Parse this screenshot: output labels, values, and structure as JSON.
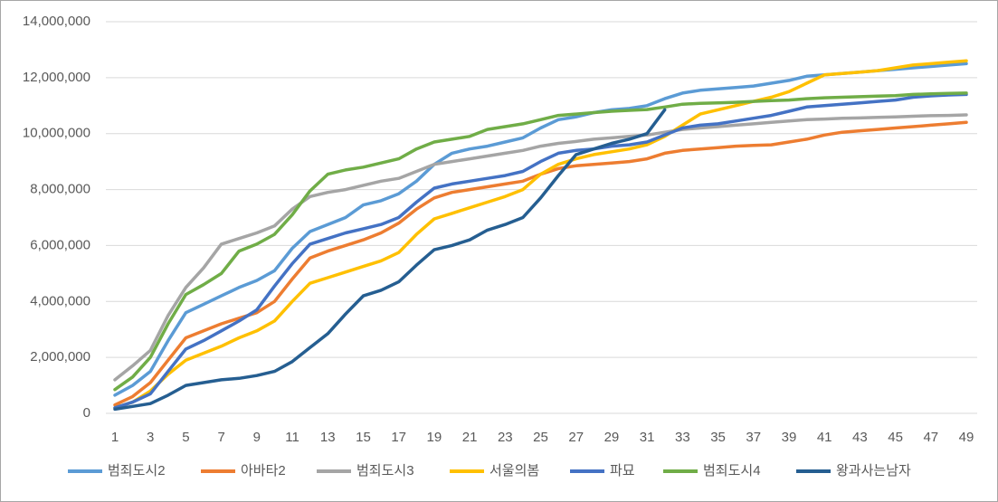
{
  "chart_data": {
    "type": "line",
    "x": [
      1,
      2,
      3,
      4,
      5,
      6,
      7,
      8,
      9,
      10,
      11,
      12,
      13,
      14,
      15,
      16,
      17,
      18,
      19,
      20,
      21,
      22,
      23,
      24,
      25,
      26,
      27,
      28,
      29,
      30,
      31,
      32,
      33,
      34,
      35,
      36,
      37,
      38,
      39,
      40,
      41,
      42,
      43,
      44,
      45,
      46,
      47,
      48,
      49
    ],
    "xlim": [
      1,
      49
    ],
    "xticks": [
      1,
      3,
      5,
      7,
      9,
      11,
      13,
      15,
      17,
      19,
      21,
      23,
      25,
      27,
      29,
      31,
      33,
      35,
      37,
      39,
      41,
      43,
      45,
      47,
      49
    ],
    "ylim": [
      0,
      14000000
    ],
    "yticks": [
      0,
      {
        "value": 2000000,
        "label": "2,000,000"
      },
      {
        "value": 4000000,
        "label": "4,000,000"
      },
      {
        "value": 6000000,
        "label": "6,000,000"
      },
      {
        "value": 8000000,
        "label": "8,000,000"
      },
      {
        "value": 10000000,
        "label": "10,000,000"
      },
      {
        "value": 12000000,
        "label": "12,000,000"
      },
      {
        "value": 14000000,
        "label": "14,000,000"
      }
    ],
    "grid": true,
    "legend": "bottom",
    "series": [
      {
        "name": "범죄도시2",
        "color": "#5b9bd5",
        "values": [
          650000,
          1000000,
          1500000,
          2600000,
          3600000,
          3900000,
          4200000,
          4500000,
          4750000,
          5100000,
          5900000,
          6500000,
          6750000,
          7000000,
          7450000,
          7600000,
          7850000,
          8300000,
          8900000,
          9300000,
          9450000,
          9550000,
          9700000,
          9850000,
          10200000,
          10500000,
          10600000,
          10750000,
          10850000,
          10900000,
          11000000,
          11250000,
          11450000,
          11550000,
          11600000,
          11650000,
          11700000,
          11800000,
          11900000,
          12050000,
          12100000,
          12150000,
          12200000,
          12250000,
          12300000,
          12350000,
          12400000,
          12450000,
          12500000
        ]
      },
      {
        "name": "아바타2",
        "color": "#ed7d31",
        "values": [
          300000,
          600000,
          1100000,
          1900000,
          2700000,
          2950000,
          3200000,
          3400000,
          3600000,
          4000000,
          4800000,
          5550000,
          5800000,
          6000000,
          6200000,
          6450000,
          6800000,
          7300000,
          7700000,
          7900000,
          8000000,
          8100000,
          8200000,
          8300000,
          8550000,
          8750000,
          8850000,
          8900000,
          8950000,
          9000000,
          9100000,
          9300000,
          9400000,
          9450000,
          9500000,
          9550000,
          9580000,
          9600000,
          9700000,
          9800000,
          9950000,
          10050000,
          10100000,
          10150000,
          10200000,
          10250000,
          10300000,
          10350000,
          10400000
        ]
      },
      {
        "name": "범죄도시3",
        "color": "#a5a5a5",
        "values": [
          1200000,
          1700000,
          2250000,
          3500000,
          4500000,
          5200000,
          6050000,
          6250000,
          6450000,
          6700000,
          7300000,
          7750000,
          7900000,
          8000000,
          8150000,
          8300000,
          8400000,
          8650000,
          8900000,
          9000000,
          9100000,
          9200000,
          9300000,
          9400000,
          9550000,
          9650000,
          9720000,
          9800000,
          9850000,
          9900000,
          9950000,
          10050000,
          10150000,
          10200000,
          10250000,
          10300000,
          10350000,
          10400000,
          10450000,
          10500000,
          10520000,
          10550000,
          10560000,
          10580000,
          10600000,
          10620000,
          10640000,
          10650000,
          10670000
        ]
      },
      {
        "name": "서울의봄",
        "color": "#ffc000",
        "values": [
          200000,
          400000,
          800000,
          1400000,
          1900000,
          2150000,
          2400000,
          2700000,
          2950000,
          3300000,
          4000000,
          4650000,
          4850000,
          5050000,
          5250000,
          5450000,
          5750000,
          6400000,
          6950000,
          7150000,
          7350000,
          7550000,
          7750000,
          8000000,
          8550000,
          8900000,
          9100000,
          9250000,
          9350000,
          9450000,
          9600000,
          9900000,
          10300000,
          10700000,
          10850000,
          11000000,
          11150000,
          11300000,
          11500000,
          11800000,
          12100000,
          12150000,
          12200000,
          12250000,
          12350000,
          12450000,
          12500000,
          12550000,
          12600000
        ]
      },
      {
        "name": "파묘",
        "color": "#4472c4",
        "values": [
          200000,
          400000,
          700000,
          1500000,
          2300000,
          2600000,
          2950000,
          3300000,
          3700000,
          4550000,
          5350000,
          6050000,
          6250000,
          6450000,
          6600000,
          6750000,
          7000000,
          7550000,
          8050000,
          8200000,
          8300000,
          8400000,
          8500000,
          8650000,
          9000000,
          9300000,
          9400000,
          9450000,
          9550000,
          9600000,
          9700000,
          9950000,
          10200000,
          10300000,
          10350000,
          10450000,
          10550000,
          10650000,
          10800000,
          10950000,
          11000000,
          11050000,
          11100000,
          11150000,
          11200000,
          11300000,
          11350000,
          11380000,
          11400000
        ]
      },
      {
        "name": "범죄도시4",
        "color": "#70ad47",
        "values": [
          850000,
          1300000,
          2000000,
          3200000,
          4250000,
          4600000,
          5000000,
          5800000,
          6050000,
          6400000,
          7100000,
          7950000,
          8550000,
          8700000,
          8800000,
          8950000,
          9100000,
          9450000,
          9700000,
          9800000,
          9900000,
          10150000,
          10250000,
          10350000,
          10500000,
          10650000,
          10700000,
          10750000,
          10800000,
          10830000,
          10860000,
          10950000,
          11050000,
          11080000,
          11100000,
          11120000,
          11150000,
          11180000,
          11200000,
          11250000,
          11280000,
          11300000,
          11320000,
          11340000,
          11360000,
          11400000,
          11420000,
          11440000,
          11450000
        ]
      },
      {
        "name": "왕과사는남자",
        "color": "#255e91",
        "values": [
          150000,
          250000,
          350000,
          650000,
          1000000,
          1100000,
          1200000,
          1250000,
          1350000,
          1500000,
          1850000,
          2350000,
          2850000,
          3550000,
          4200000,
          4400000,
          4700000,
          5300000,
          5850000,
          6000000,
          6200000,
          6550000,
          6750000,
          7000000,
          7700000,
          8500000,
          9250000,
          9450000,
          9650000,
          9800000,
          10000000,
          10850000,
          null,
          null,
          null,
          null,
          null,
          null,
          null,
          null,
          null,
          null,
          null,
          null,
          null,
          null,
          null,
          null,
          null
        ]
      }
    ]
  }
}
